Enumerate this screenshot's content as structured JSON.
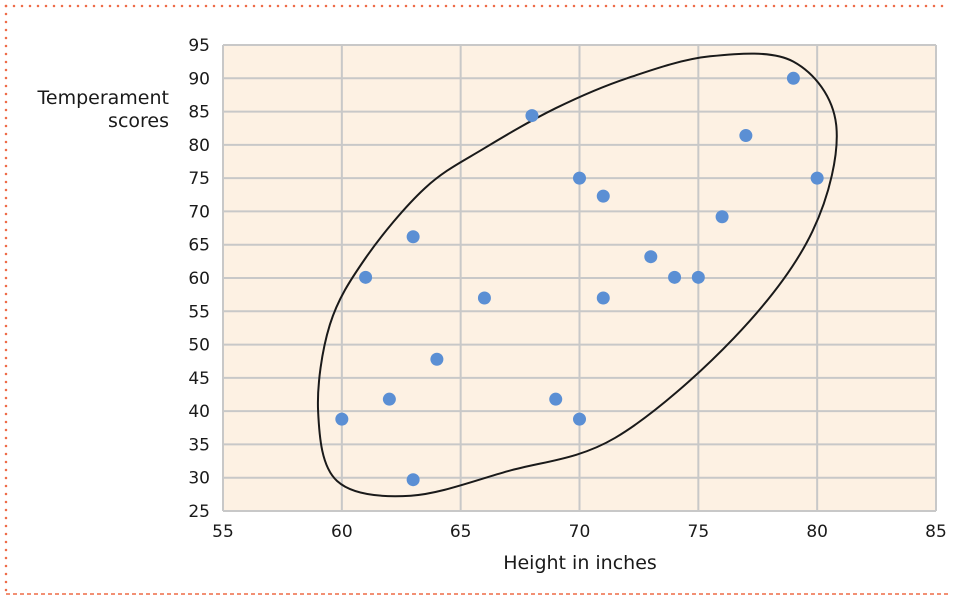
{
  "chart_data": {
    "type": "scatter",
    "xlabel": "Height in inches",
    "ylabel_lines": [
      "Temperament",
      "scores"
    ],
    "xlim": [
      55,
      85
    ],
    "ylim": [
      25,
      95
    ],
    "x_ticks": [
      55,
      60,
      65,
      70,
      75,
      80,
      85
    ],
    "y_ticks": [
      25,
      30,
      35,
      40,
      45,
      50,
      55,
      60,
      65,
      70,
      75,
      80,
      85,
      90,
      95
    ],
    "grid": true,
    "legend": "none",
    "points": [
      {
        "x": 60,
        "y": 38.8
      },
      {
        "x": 61,
        "y": 60.1
      },
      {
        "x": 62,
        "y": 41.8
      },
      {
        "x": 63,
        "y": 66.2
      },
      {
        "x": 63,
        "y": 29.7
      },
      {
        "x": 64,
        "y": 47.8
      },
      {
        "x": 66,
        "y": 57.0
      },
      {
        "x": 68,
        "y": 84.4
      },
      {
        "x": 69,
        "y": 41.8
      },
      {
        "x": 70,
        "y": 75.0
      },
      {
        "x": 70,
        "y": 38.8
      },
      {
        "x": 71,
        "y": 72.3
      },
      {
        "x": 71,
        "y": 57.0
      },
      {
        "x": 73,
        "y": 63.2
      },
      {
        "x": 74,
        "y": 60.1
      },
      {
        "x": 75,
        "y": 60.1
      },
      {
        "x": 76,
        "y": 69.2
      },
      {
        "x": 77,
        "y": 81.4
      },
      {
        "x": 79,
        "y": 90.0
      },
      {
        "x": 80,
        "y": 75.0
      }
    ],
    "enclosure": [
      [
        62.9,
        27.3
      ],
      [
        59.8,
        29.5
      ],
      [
        59.0,
        40.0
      ],
      [
        59.5,
        53.0
      ],
      [
        61.0,
        63.0
      ],
      [
        63.5,
        73.5
      ],
      [
        66.0,
        79.5
      ],
      [
        69.0,
        85.5
      ],
      [
        72.0,
        90.0
      ],
      [
        75.5,
        93.3
      ],
      [
        79.0,
        92.5
      ],
      [
        80.8,
        83.0
      ],
      [
        79.8,
        67.0
      ],
      [
        76.5,
        51.0
      ],
      [
        71.5,
        36.0
      ],
      [
        67.0,
        31.0
      ]
    ],
    "colors": {
      "plot_bg": "#fdf1e3",
      "grid": "#c8c8c8",
      "point": "#5b8fd4",
      "enclosure": "#1a1a1a",
      "border": "#ee6b47"
    }
  }
}
